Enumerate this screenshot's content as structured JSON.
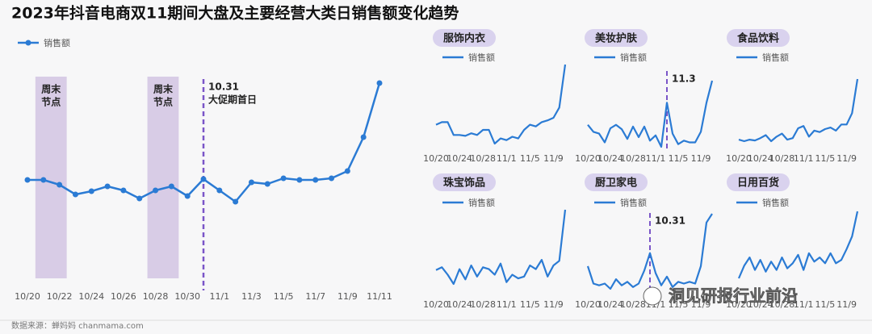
{
  "title": "2023年抖音电商双11期间大盘及主要经营大类日销售额变化趋势",
  "source": "数据来源：蝉妈妈 chanmama.com",
  "watermark": "洞见研报行业前沿",
  "chart_data": [
    {
      "type": "line",
      "categories": [
        "10/20",
        null,
        "10/22",
        null,
        "10/24",
        null,
        "10/26",
        null,
        "10/28",
        null,
        "10/30",
        null,
        "11/1",
        null,
        "11/3",
        null,
        "11/5",
        null,
        "11/7",
        null,
        "11/9",
        null,
        "11/11"
      ],
      "series": [
        {
          "name": "销售额",
          "color": "#2b7bd4",
          "values": [
            37,
            37,
            31,
            19,
            23,
            29,
            24,
            14,
            24,
            29,
            17,
            38,
            24,
            10,
            34,
            32,
            39,
            37,
            37,
            39,
            48,
            90,
            157
          ]
        }
      ],
      "bands": [
        {
          "label": [
            "周末",
            "节点"
          ]
        },
        {
          "label": [
            "周末",
            "节点"
          ]
        }
      ],
      "markers": [
        {
          "label": [
            "10.31",
            "大促期首日"
          ]
        }
      ]
    },
    {
      "type": "line",
      "title": "服饰内衣",
      "categories": [
        "10/20",
        null,
        null,
        null,
        "10/24",
        null,
        null,
        null,
        "10/28",
        null,
        null,
        null,
        "11/1",
        null,
        null,
        null,
        "11/5",
        null,
        null,
        null,
        "11/9",
        null,
        null
      ],
      "series": [
        {
          "name": "销售额",
          "color": "#2b7bd4",
          "values": [
            30,
            33,
            33,
            18,
            18,
            17,
            20,
            18,
            24,
            24,
            8,
            14,
            12,
            16,
            14,
            24,
            30,
            28,
            33,
            35,
            38,
            50,
            100
          ]
        }
      ]
    },
    {
      "type": "line",
      "title": "美妆护肤",
      "categories": [
        "10/20",
        null,
        null,
        null,
        "10/24",
        null,
        null,
        null,
        "10/28",
        null,
        null,
        null,
        "11/1",
        null,
        null,
        null,
        "11/5",
        null,
        null,
        null,
        "11/9",
        null,
        null
      ],
      "series": [
        {
          "name": "销售额",
          "color": "#2b7bd4",
          "values": [
            30,
            22,
            20,
            10,
            26,
            30,
            25,
            14,
            28,
            16,
            28,
            12,
            18,
            5,
            55,
            20,
            8,
            12,
            10,
            10,
            22,
            55,
            80
          ]
        }
      ],
      "markers": [
        {
          "label": [
            "11.3"
          ]
        }
      ]
    },
    {
      "type": "line",
      "title": "食品饮料",
      "categories": [
        "10/20",
        null,
        null,
        null,
        "10/24",
        null,
        null,
        null,
        "10/28",
        null,
        null,
        null,
        "11/1",
        null,
        null,
        null,
        "11/5",
        null,
        null,
        null,
        "11/9",
        null,
        null
      ],
      "series": [
        {
          "name": "销售额",
          "color": "#2b7bd4",
          "values": [
            10,
            8,
            10,
            9,
            12,
            16,
            8,
            14,
            18,
            10,
            12,
            25,
            28,
            14,
            22,
            20,
            24,
            26,
            22,
            30,
            30,
            45,
            90
          ]
        }
      ]
    },
    {
      "type": "line",
      "title": "珠宝饰品",
      "categories": [
        "10/20",
        null,
        null,
        null,
        "10/24",
        null,
        null,
        null,
        "10/28",
        null,
        null,
        null,
        "11/1",
        null,
        null,
        null,
        "11/5",
        null,
        null,
        null,
        "11/9",
        null,
        null
      ],
      "series": [
        {
          "name": "销售额",
          "color": "#2b7bd4",
          "values": [
            35,
            38,
            30,
            20,
            36,
            25,
            40,
            28,
            38,
            36,
            30,
            42,
            22,
            30,
            26,
            28,
            40,
            36,
            46,
            28,
            40,
            45,
            100
          ]
        }
      ]
    },
    {
      "type": "line",
      "title": "厨卫家电",
      "categories": [
        "10/20",
        null,
        null,
        null,
        "10/24",
        null,
        null,
        null,
        "10/28",
        null,
        null,
        null,
        "11/1",
        null,
        null,
        null,
        "11/5",
        null,
        null,
        null,
        "11/9",
        null,
        null
      ],
      "series": [
        {
          "name": "销售额",
          "color": "#2b7bd4",
          "values": [
            30,
            10,
            8,
            10,
            4,
            15,
            8,
            12,
            6,
            10,
            25,
            45,
            22,
            8,
            18,
            6,
            12,
            10,
            12,
            10,
            30,
            80,
            90
          ]
        }
      ],
      "markers": [
        {
          "label": [
            "10.31"
          ]
        }
      ]
    },
    {
      "type": "line",
      "title": "日用百货",
      "categories": [
        "10/20",
        null,
        null,
        null,
        "10/24",
        null,
        null,
        null,
        "10/28",
        null,
        null,
        null,
        "11/1",
        null,
        null,
        null,
        "11/5",
        null,
        null,
        null,
        "11/9",
        null,
        null
      ],
      "series": [
        {
          "name": "销售额",
          "color": "#2b7bd4",
          "values": [
            20,
            35,
            45,
            30,
            42,
            28,
            40,
            30,
            45,
            32,
            38,
            48,
            30,
            50,
            40,
            45,
            38,
            50,
            38,
            42,
            55,
            70,
            100
          ]
        }
      ]
    }
  ]
}
